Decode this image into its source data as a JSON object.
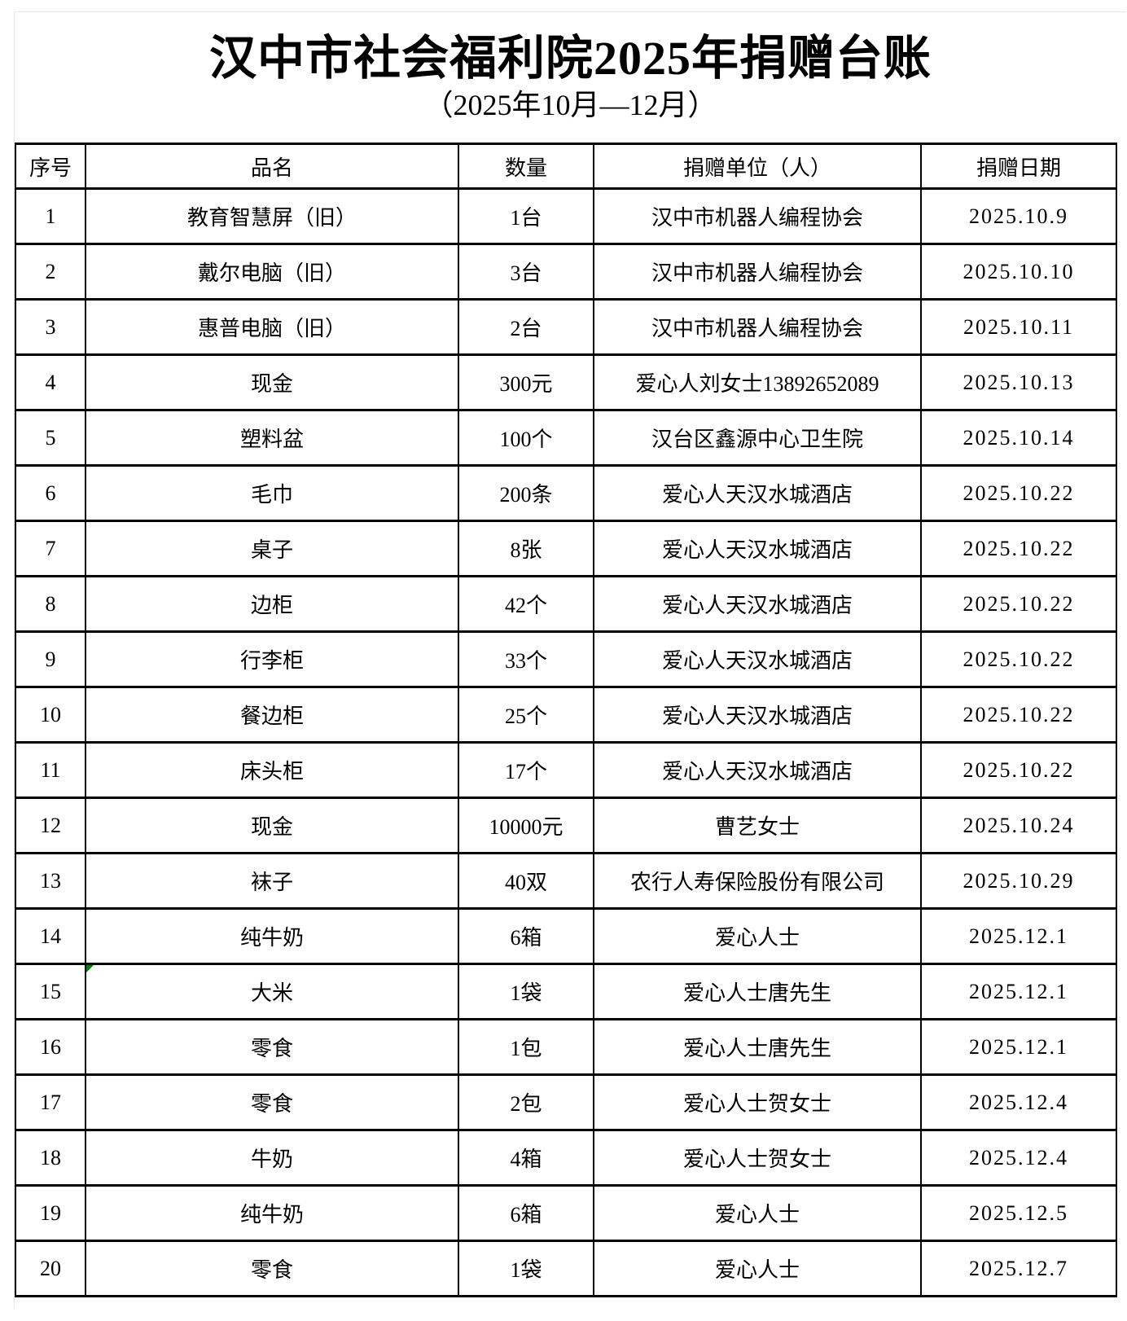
{
  "page": {
    "title": "汉中市社会福利院2025年捐赠台账",
    "subtitle": "（2025年10月—12月）"
  },
  "table": {
    "headers": [
      "序号",
      "品名",
      "数量",
      "捐赠单位（人）",
      "捐赠日期"
    ],
    "rows": [
      {
        "no": "1",
        "item": "教育智慧屏（旧）",
        "qty": "1台",
        "donor": "汉中市机器人编程协会",
        "date": "2025.10.9"
      },
      {
        "no": "2",
        "item": "戴尔电脑（旧）",
        "qty": "3台",
        "donor": "汉中市机器人编程协会",
        "date": "2025.10.10"
      },
      {
        "no": "3",
        "item": "惠普电脑（旧）",
        "qty": "2台",
        "donor": "汉中市机器人编程协会",
        "date": "2025.10.11"
      },
      {
        "no": "4",
        "item": "现金",
        "qty": "300元",
        "donor": "爱心人刘女士13892652089",
        "date": "2025.10.13"
      },
      {
        "no": "5",
        "item": "塑料盆",
        "qty": "100个",
        "donor": "汉台区鑫源中心卫生院",
        "date": "2025.10.14"
      },
      {
        "no": "6",
        "item": "毛巾",
        "qty": "200条",
        "donor": "爱心人天汉水城酒店",
        "date": "2025.10.22"
      },
      {
        "no": "7",
        "item": "桌子",
        "qty": "8张",
        "donor": "爱心人天汉水城酒店",
        "date": "2025.10.22"
      },
      {
        "no": "8",
        "item": "边柜",
        "qty": "42个",
        "donor": "爱心人天汉水城酒店",
        "date": "2025.10.22"
      },
      {
        "no": "9",
        "item": "行李柜",
        "qty": "33个",
        "donor": "爱心人天汉水城酒店",
        "date": "2025.10.22"
      },
      {
        "no": "10",
        "item": "餐边柜",
        "qty": "25个",
        "donor": "爱心人天汉水城酒店",
        "date": "2025.10.22"
      },
      {
        "no": "11",
        "item": "床头柜",
        "qty": "17个",
        "donor": "爱心人天汉水城酒店",
        "date": "2025.10.22"
      },
      {
        "no": "12",
        "item": "现金",
        "qty": "10000元",
        "donor": "曹艺女士",
        "date": "2025.10.24"
      },
      {
        "no": "13",
        "item": "袜子",
        "qty": "40双",
        "donor": "农行人寿保险股份有限公司",
        "date": "2025.10.29"
      },
      {
        "no": "14",
        "item": "纯牛奶",
        "qty": "6箱",
        "donor": "爱心人士",
        "date": "2025.12.1"
      },
      {
        "no": "15",
        "item": "大米",
        "qty": "1袋",
        "donor": "爱心人士唐先生",
        "date": "2025.12.1",
        "note_marker": true
      },
      {
        "no": "16",
        "item": "零食",
        "qty": "1包",
        "donor": "爱心人士唐先生",
        "date": "2025.12.1"
      },
      {
        "no": "17",
        "item": "零食",
        "qty": "2包",
        "donor": "爱心人士贺女士",
        "date": "2025.12.4"
      },
      {
        "no": "18",
        "item": "牛奶",
        "qty": "4箱",
        "donor": "爱心人士贺女士",
        "date": "2025.12.4"
      },
      {
        "no": "19",
        "item": "纯牛奶",
        "qty": "6箱",
        "donor": "爱心人士",
        "date": "2025.12.5"
      },
      {
        "no": "20",
        "item": "零食",
        "qty": "1袋",
        "donor": "爱心人士",
        "date": "2025.12.7"
      }
    ]
  },
  "colors": {
    "border": "#000000",
    "text": "#000000",
    "note_marker": "#008000",
    "gridline": "#e8e8e8",
    "background": "#ffffff"
  }
}
